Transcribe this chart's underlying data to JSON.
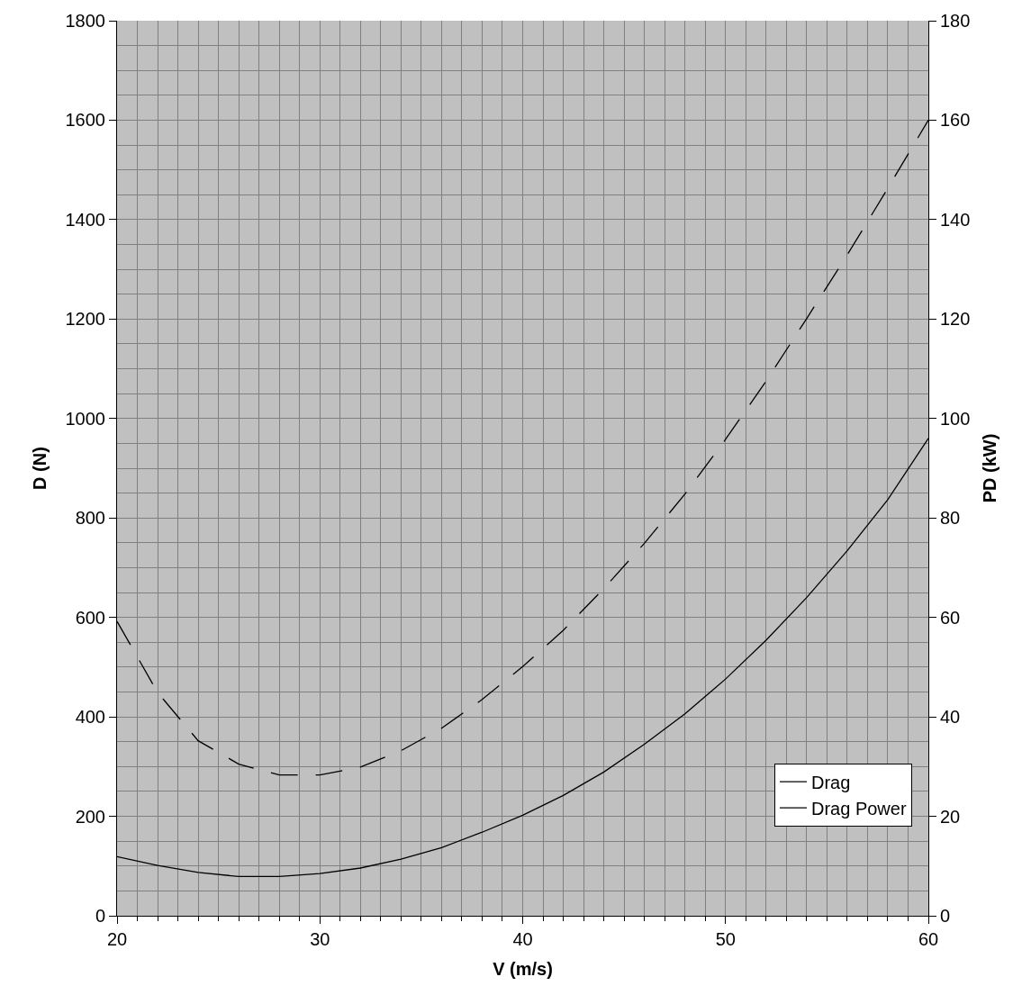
{
  "chart_data": {
    "type": "line",
    "xlabel": "V (m/s)",
    "ylabel": "D (N)",
    "y2label": "PD (kW)",
    "x": [
      20,
      22,
      24,
      26,
      28,
      30,
      32,
      34,
      36,
      38,
      40,
      42,
      44,
      46,
      48,
      50,
      52,
      54,
      56,
      58,
      60
    ],
    "series": [
      {
        "name": "Drag",
        "color": "#000000",
        "line_style": "dashed",
        "values": [
          592,
          449,
          352,
          305,
          283,
          283,
          299,
          332,
          377,
          435,
          501,
          574,
          658,
          749,
          848,
          958,
          1075,
          1201,
          1329,
          1463,
          1600
        ]
      },
      {
        "name": "Drag Power",
        "color": "#000000",
        "line_style": "solid",
        "axis": "y2",
        "values": [
          11.9,
          10.1,
          8.7,
          7.9,
          7.9,
          8.5,
          9.6,
          11.4,
          13.7,
          16.8,
          20.2,
          24.2,
          28.9,
          34.5,
          40.6,
          47.6,
          55.4,
          64.0,
          73.4,
          83.7,
          96.0
        ]
      }
    ],
    "xlim": [
      20,
      60
    ],
    "xticks": [
      20,
      30,
      40,
      50,
      60
    ],
    "ylim": [
      0,
      1800
    ],
    "yticks": [
      0,
      200,
      400,
      600,
      800,
      1000,
      1200,
      1400,
      1600,
      1800
    ],
    "y2lim": [
      0,
      180
    ],
    "y2ticks": [
      0,
      20,
      40,
      60,
      80,
      100,
      120,
      140,
      160,
      180
    ],
    "grid": true,
    "legend": "bottom right",
    "marker": "none"
  }
}
